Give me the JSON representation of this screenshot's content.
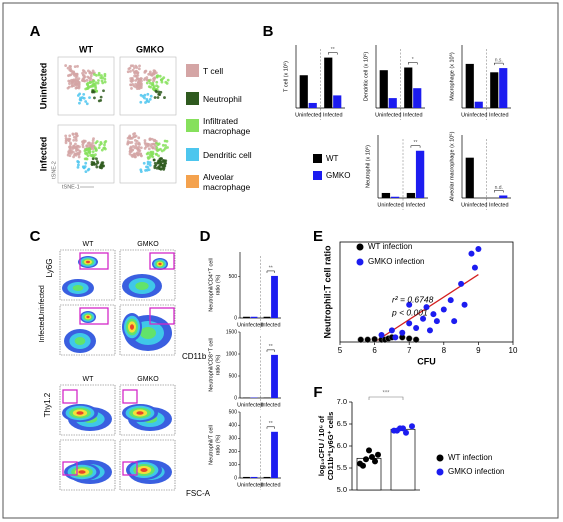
{
  "panel_letters": [
    "A",
    "B",
    "C",
    "D",
    "E",
    "F"
  ],
  "panel_a": {
    "column_labels": [
      "WT",
      "GMKO"
    ],
    "row_labels": [
      "Uninfected",
      "Infected"
    ],
    "x_axis": "tSNE-1",
    "y_axis": "tSNE-2",
    "legend": [
      {
        "label": "T cell",
        "color": "#d4a5a5"
      },
      {
        "label": "Neutrophil",
        "color": "#2f5a1f"
      },
      {
        "label": "Infiltrated macrophage",
        "color": "#86e05c"
      },
      {
        "label": "Dendritic cell",
        "color": "#4dc6ee"
      },
      {
        "label": "Alveolar macrophage",
        "color": "#f4a24e"
      }
    ]
  },
  "legend_b": [
    {
      "name": "WT",
      "color": "#000000"
    },
    {
      "name": "GMKO",
      "color": "#1c1cf0"
    }
  ],
  "panel_c": {
    "column_labels": [
      "WT",
      "GMKO"
    ],
    "row_labels": [
      "Uninfected",
      "Infected"
    ],
    "top_y_axis": "Ly6G",
    "top_x_axis": "CD11b",
    "bottom_column_labels": [
      "WT",
      "GMKO"
    ],
    "bottom_y_axis": "Thy1.2",
    "bottom_x_axis": "FSC-A"
  },
  "chart_data": [
    {
      "type": "bar",
      "y_label": [
        "T cell (x 10⁵)"
      ],
      "categories": [
        "Uninfected",
        "Infected"
      ],
      "series": [
        {
          "values": [
            5.2,
            8.0
          ]
        },
        {
          "values": [
            0.8,
            2.0
          ]
        }
      ],
      "ylim": [
        0,
        10
      ],
      "significance": "**"
    },
    {
      "type": "bar",
      "y_label": [
        "Dendritic cell (x 10⁵)"
      ],
      "categories": [
        "Uninfected",
        "Infected"
      ],
      "series": [
        {
          "values": [
            4.2,
            4.5
          ]
        },
        {
          "values": [
            1.1,
            2.2
          ]
        }
      ],
      "ylim": [
        0,
        7
      ],
      "significance": "*"
    },
    {
      "type": "bar",
      "y_label": [
        "Macrophage (x 10⁵)"
      ],
      "categories": [
        "Uninfected",
        "Infected"
      ],
      "series": [
        {
          "values": [
            2.1,
            1.7
          ]
        },
        {
          "values": [
            0.3,
            1.9
          ]
        }
      ],
      "ylim": [
        0,
        3
      ],
      "significance": "n.s."
    },
    {
      "type": "bar",
      "y_label": [
        "Neutrophil (x 10⁵)"
      ],
      "categories": [
        "Uninfected",
        "Infected"
      ],
      "series": [
        {
          "values": [
            0.8,
            0.8
          ]
        },
        {
          "values": [
            0.2,
            7.5
          ]
        }
      ],
      "ylim": [
        0,
        10
      ],
      "significance": "**"
    },
    {
      "type": "bar",
      "y_label": [
        "Alveolar macrophage (x 10⁵)"
      ],
      "categories": [
        "Uninfected",
        "Infected"
      ],
      "series": [
        {
          "values": [
            3.2,
            0
          ]
        },
        {
          "values": [
            0,
            0.2
          ]
        }
      ],
      "ylim": [
        0,
        5
      ],
      "significance": "n.d."
    },
    {
      "type": "bar",
      "y_label": [
        "Neutrophil/CD4⁺T cell",
        "ratio (%)"
      ],
      "categories": [
        "Uninfected",
        "Infected"
      ],
      "series": [
        {
          "values": [
            15,
            15
          ]
        },
        {
          "values": [
            15,
            510
          ]
        }
      ],
      "ylim": [
        0,
        800
      ],
      "yticks": [
        0,
        500
      ],
      "significance": "**"
    },
    {
      "type": "bar",
      "y_label": [
        "Neutrophil/CD8⁺T cell",
        "ratio (%)"
      ],
      "categories": [
        "Uninfected",
        "Infected"
      ],
      "series": [
        {
          "values": [
            10,
            10
          ]
        },
        {
          "values": [
            10,
            980
          ]
        }
      ],
      "ylim": [
        0,
        1500
      ],
      "yticks": [
        0,
        500,
        1000,
        1500
      ],
      "significance": "**"
    },
    {
      "type": "bar",
      "y_label": [
        "Neutrophil/T cell",
        "ratio (%)"
      ],
      "categories": [
        "Uninfected",
        "Infected"
      ],
      "series": [
        {
          "values": [
            8,
            8
          ]
        },
        {
          "values": [
            8,
            350
          ]
        }
      ],
      "ylim": [
        0,
        500
      ],
      "yticks": [
        0,
        100,
        200,
        300,
        400,
        500
      ],
      "significance": "**"
    },
    {
      "type": "scatter",
      "x_label": "CFU",
      "y_label": "Neutrophil:T cell ratio",
      "xlim": [
        5,
        10
      ],
      "xticks": [
        5,
        6,
        7,
        8,
        9,
        10
      ],
      "ylim": [
        0,
        4.3
      ],
      "series": [
        {
          "name": "WT infection",
          "color": "#000000",
          "x": [
            5.6,
            5.8,
            6.0,
            6.2,
            6.3,
            6.4,
            6.5,
            6.8,
            7.0,
            7.2
          ],
          "y": [
            0.1,
            0.1,
            0.12,
            0.1,
            0.1,
            0.15,
            0.2,
            0.2,
            0.15,
            0.1
          ]
        },
        {
          "name": "GMKO infection",
          "color": "#1c1cf0",
          "x": [
            6.2,
            6.5,
            6.6,
            6.8,
            7.0,
            7.0,
            7.2,
            7.4,
            7.5,
            7.6,
            7.7,
            7.8,
            8.0,
            8.2,
            8.3,
            8.5,
            8.6,
            8.8,
            8.9,
            9.0
          ],
          "y": [
            0.3,
            0.5,
            0.2,
            0.4,
            0.8,
            1.6,
            0.6,
            1.0,
            1.5,
            0.5,
            1.2,
            0.9,
            1.4,
            1.8,
            0.9,
            2.5,
            1.6,
            3.8,
            3.2,
            4.0
          ]
        }
      ],
      "fit_line": {
        "color": "#d42020",
        "x": [
          6.0,
          9.0
        ],
        "y": [
          0.0,
          2.9
        ]
      },
      "annotations": [
        "r² = 0.6748",
        "p < 0.001"
      ]
    },
    {
      "type": "dotbar",
      "y_label": [
        "log₁₀CFU / 10⁶ of",
        "CD11b⁺Ly6G⁺ cells"
      ],
      "ylim": [
        5.0,
        7.0
      ],
      "yticks": [
        {
          "value": 5,
          "label": "5.0"
        },
        5.5,
        {
          "value": 6,
          "label": "6.0"
        },
        6.5,
        {
          "value": 7,
          "label": "7.0"
        }
      ],
      "series": [
        {
          "name": "WT infection",
          "color": "#000000",
          "mean": 5.72,
          "values": [
            5.6,
            5.7,
            5.75,
            5.8,
            5.55,
            5.9,
            5.65
          ]
        },
        {
          "name": "GMKO infection",
          "color": "#1c1cf0",
          "mean": 6.38,
          "values": [
            6.35,
            6.4,
            6.3,
            6.45,
            6.35,
            6.4
          ]
        }
      ],
      "significance": "***"
    }
  ]
}
